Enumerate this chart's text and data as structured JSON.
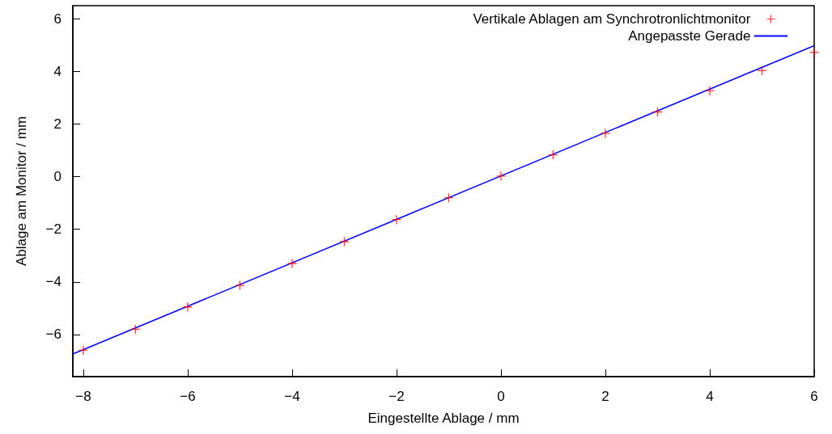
{
  "chart_data": {
    "type": "scatter",
    "xlabel": "Eingestellte Ablage / mm",
    "ylabel": "Ablage am Monitor / mm",
    "xlim": [
      -8.2,
      6
    ],
    "xticks": [
      -8,
      -6,
      -4,
      -2,
      0,
      2,
      4,
      6
    ],
    "ylim": [
      -7.6,
      6.5
    ],
    "yticks": [
      -6,
      -4,
      -2,
      0,
      2,
      4,
      6
    ],
    "grid": false,
    "legend": "top right",
    "series": [
      {
        "name": "Vertikale Ablagen am Synchrotronlichtmonitor",
        "marker": "cross",
        "color": "#ff0000",
        "x": [
          -8,
          -7,
          -6,
          -5,
          -4,
          -3,
          -2,
          -1,
          0,
          1,
          2,
          3,
          4,
          5,
          6
        ],
        "values": [
          -6.6,
          -5.8,
          -4.95,
          -4.13,
          -3.3,
          -2.47,
          -1.63,
          -0.8,
          0.02,
          0.83,
          1.65,
          2.46,
          3.27,
          4.03,
          4.72
        ]
      },
      {
        "name": "Angepasste Gerade",
        "type": "line",
        "marker": "none",
        "line_style": "solid",
        "color": "#0000ff",
        "x": [
          -8.2,
          6
        ],
        "values": [
          -6.74,
          4.98
        ]
      }
    ]
  }
}
